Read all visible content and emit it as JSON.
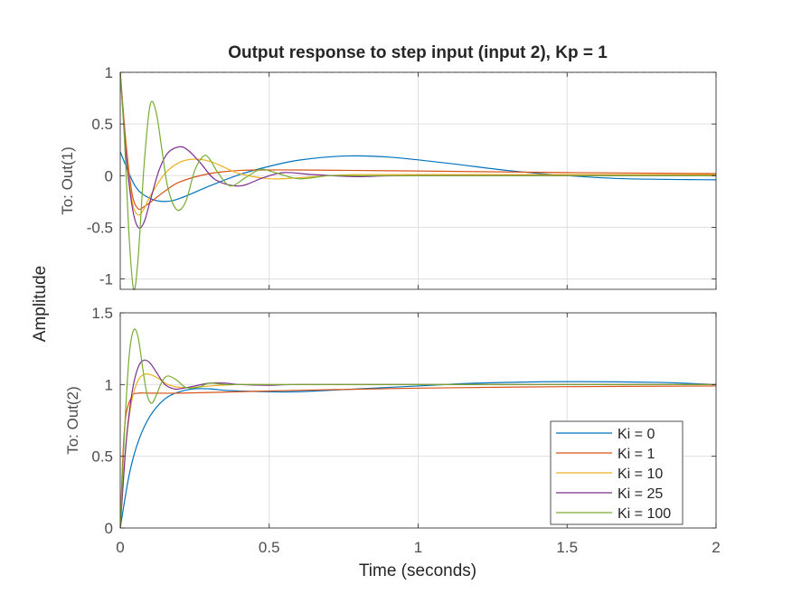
{
  "chart_data": {
    "type": "line",
    "title": "Output response to step input (input 2), Kp = 1",
    "xlabel": "Time (seconds)",
    "ylabel": "Amplitude",
    "xlim": [
      0,
      2
    ],
    "xticks": [
      "0",
      "0.5",
      "1",
      "1.5",
      "2"
    ],
    "xtick_values": [
      0,
      0.5,
      1,
      1.5,
      2
    ],
    "grid": true,
    "legend": {
      "location": "bottom-right of lower panel",
      "entries": [
        "Ki = 0",
        "Ki = 1",
        "Ki = 10",
        "Ki = 25",
        "Ki = 100"
      ]
    },
    "colors": [
      "#0072BD",
      "#D95319",
      "#EDB120",
      "#7E2F8E",
      "#77AC30"
    ],
    "panels": [
      {
        "ylabel": "To: Out(1)",
        "ylim": [
          -1.1,
          1
        ],
        "yticks": [
          "-1",
          "-0.5",
          "0",
          "0.5",
          "1"
        ],
        "ytick_values": [
          -1,
          -0.5,
          0,
          0.5,
          1
        ],
        "reference_line": 1,
        "series": [
          {
            "name": "Ki = 0",
            "x": [
              0,
              0.05,
              0.1,
              0.15,
              0.2,
              0.3,
              0.4,
              0.5,
              0.6,
              0.75,
              0.9,
              1.1,
              1.3,
              1.5,
              1.7,
              2.0
            ],
            "y": [
              0.23,
              -0.1,
              -0.22,
              -0.25,
              -0.22,
              -0.1,
              0.01,
              0.09,
              0.15,
              0.19,
              0.18,
              0.12,
              0.05,
              0.0,
              -0.03,
              -0.04
            ]
          },
          {
            "name": "Ki = 1",
            "x": [
              0,
              0.02,
              0.04,
              0.06,
              0.08,
              0.1,
              0.15,
              0.2,
              0.3,
              0.4,
              0.5,
              0.6,
              0.8,
              1.0,
              1.5,
              2.0
            ],
            "y": [
              1.0,
              0.3,
              -0.18,
              -0.32,
              -0.3,
              -0.26,
              -0.15,
              -0.06,
              0.02,
              0.05,
              0.055,
              0.055,
              0.05,
              0.045,
              0.03,
              0.02
            ]
          },
          {
            "name": "Ki = 10",
            "x": [
              0,
              0.02,
              0.04,
              0.06,
              0.08,
              0.1,
              0.15,
              0.2,
              0.25,
              0.3,
              0.35,
              0.4,
              0.5,
              0.6,
              0.7,
              0.8,
              1.0,
              1.5,
              2.0
            ],
            "y": [
              1.0,
              0.25,
              -0.25,
              -0.38,
              -0.32,
              -0.2,
              0.02,
              0.13,
              0.16,
              0.14,
              0.08,
              0.02,
              -0.03,
              -0.02,
              0.0,
              0.01,
              0.01,
              0.01,
              0.01
            ]
          },
          {
            "name": "Ki = 25",
            "x": [
              0,
              0.02,
              0.04,
              0.06,
              0.08,
              0.1,
              0.13,
              0.16,
              0.2,
              0.23,
              0.27,
              0.32,
              0.4,
              0.48,
              0.55,
              0.65,
              0.8,
              1.0,
              2.0
            ],
            "y": [
              1.0,
              0.2,
              -0.3,
              -0.5,
              -0.45,
              -0.25,
              0.05,
              0.22,
              0.28,
              0.24,
              0.12,
              -0.04,
              -0.1,
              -0.02,
              0.03,
              0.01,
              -0.01,
              0.0,
              0.0
            ]
          },
          {
            "name": "Ki = 100",
            "x": [
              0,
              0.015,
              0.03,
              0.045,
              0.06,
              0.08,
              0.1,
              0.12,
              0.14,
              0.16,
              0.19,
              0.22,
              0.25,
              0.28,
              0.3,
              0.33,
              0.37,
              0.42,
              0.47,
              0.52,
              0.6,
              0.7,
              0.8,
              1.0,
              2.0
            ],
            "y": [
              1.0,
              0.3,
              -0.6,
              -1.1,
              -0.8,
              0.1,
              0.68,
              0.62,
              0.25,
              -0.12,
              -0.33,
              -0.25,
              0.05,
              0.19,
              0.16,
              0.02,
              -0.1,
              -0.02,
              0.06,
              0.03,
              -0.03,
              0.0,
              0.0,
              0.0,
              0.0
            ]
          }
        ]
      },
      {
        "ylabel": "To: Out(2)",
        "ylim": [
          0,
          1.5
        ],
        "yticks": [
          "0",
          "0.5",
          "1",
          "1.5"
        ],
        "ytick_values": [
          0,
          0.5,
          1,
          1.5
        ],
        "series": [
          {
            "name": "Ki = 0",
            "x": [
              0,
              0.03,
              0.06,
              0.1,
              0.15,
              0.2,
              0.25,
              0.3,
              0.35,
              0.4,
              0.5,
              0.6,
              0.8,
              1.0,
              1.2,
              1.5,
              1.8,
              2.0
            ],
            "y": [
              0,
              0.37,
              0.6,
              0.78,
              0.9,
              0.95,
              0.97,
              0.97,
              0.96,
              0.955,
              0.95,
              0.95,
              0.97,
              0.99,
              1.01,
              1.02,
              1.015,
              1.0
            ]
          },
          {
            "name": "Ki = 1",
            "x": [
              0,
              0.01,
              0.02,
              0.04,
              0.06,
              0.1,
              0.2,
              0.4,
              0.6,
              1.0,
              1.5,
              2.0
            ],
            "y": [
              0,
              0.55,
              0.8,
              0.92,
              0.94,
              0.94,
              0.94,
              0.95,
              0.96,
              0.975,
              0.985,
              0.99
            ]
          },
          {
            "name": "Ki = 10",
            "x": [
              0,
              0.02,
              0.04,
              0.06,
              0.08,
              0.1,
              0.13,
              0.16,
              0.2,
              0.25,
              0.3,
              0.4,
              0.5,
              0.7,
              1.0,
              2.0
            ],
            "y": [
              0,
              0.6,
              0.9,
              1.03,
              1.07,
              1.07,
              1.04,
              1.0,
              0.98,
              0.98,
              0.99,
              1.0,
              1.0,
              1.0,
              1.0,
              1.0
            ]
          },
          {
            "name": "Ki = 25",
            "x": [
              0,
              0.02,
              0.04,
              0.06,
              0.08,
              0.1,
              0.12,
              0.15,
              0.18,
              0.2,
              0.25,
              0.3,
              0.35,
              0.4,
              0.5,
              0.6,
              1.0,
              2.0
            ],
            "y": [
              0,
              0.6,
              0.95,
              1.12,
              1.17,
              1.15,
              1.09,
              1.0,
              0.97,
              0.97,
              0.99,
              1.01,
              1.01,
              1.0,
              0.995,
              1.0,
              1.0,
              1.0
            ]
          },
          {
            "name": "Ki = 100",
            "x": [
              0,
              0.015,
              0.03,
              0.045,
              0.06,
              0.075,
              0.09,
              0.105,
              0.12,
              0.14,
              0.16,
              0.19,
              0.22,
              0.26,
              0.3,
              0.35,
              0.4,
              0.5,
              1.0,
              2.0
            ],
            "y": [
              0,
              0.7,
              1.2,
              1.38,
              1.33,
              1.12,
              0.93,
              0.87,
              0.92,
              1.02,
              1.06,
              1.03,
              0.98,
              0.98,
              1.01,
              1.0,
              1.0,
              1.0,
              1.0,
              1.0
            ]
          }
        ]
      }
    ]
  }
}
